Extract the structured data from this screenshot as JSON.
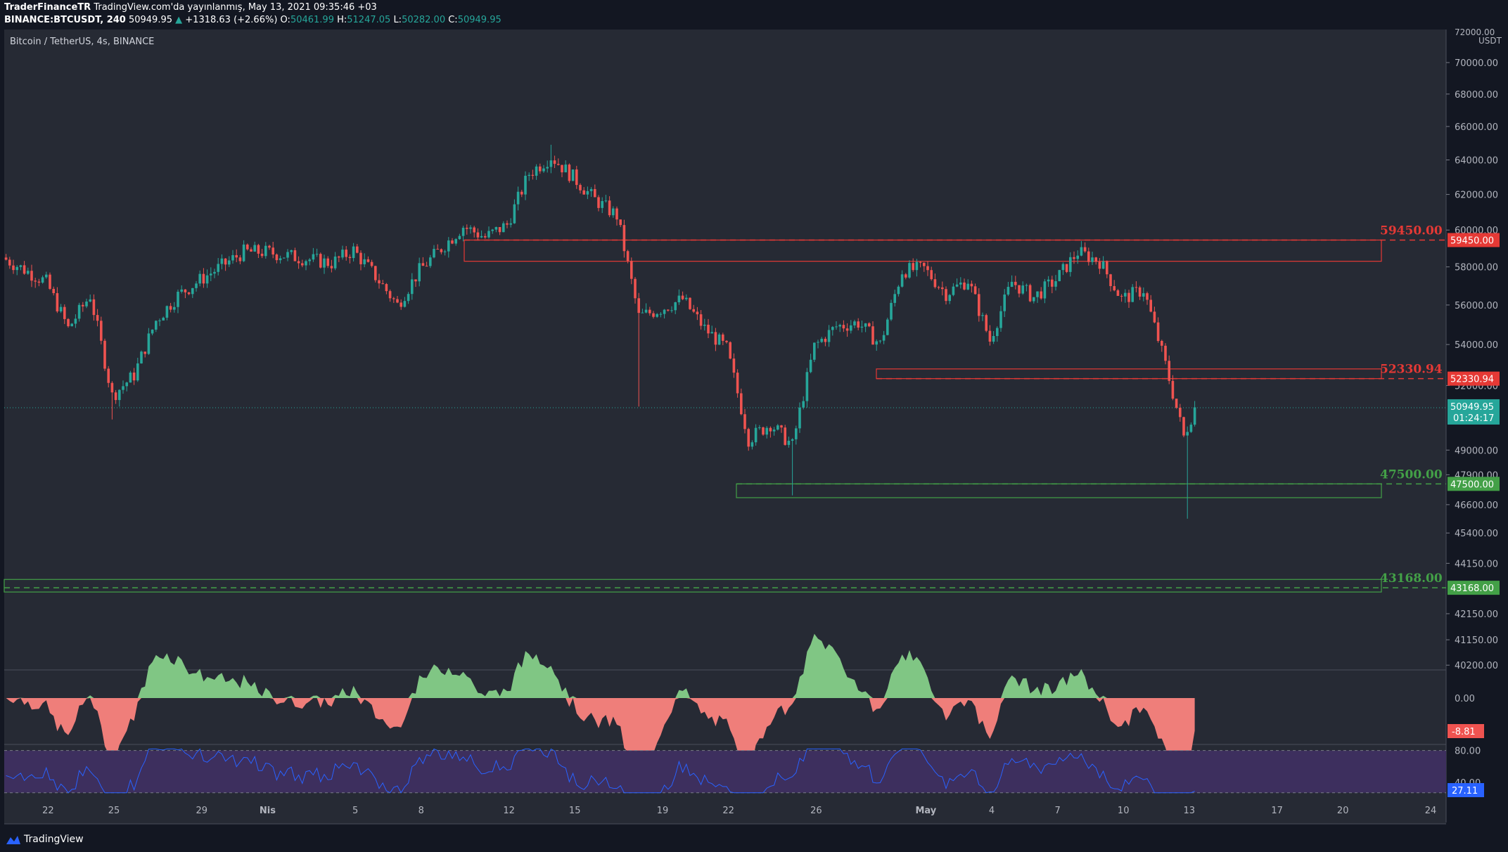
{
  "header": {
    "author": "TraderFinanceTR",
    "published": "TradingView.com'da yayınlanmış, May 13, 2021 09:35:46 +03",
    "ticker": "BINANCE:BTCUSDT, 240",
    "last": "50949.95",
    "change_icon": "triangle-up-icon",
    "change": "+1318.63 (+2.66%)",
    "o_label": "O:",
    "o": "50461.99",
    "h_label": "H:",
    "h": "51247.05",
    "l_label": "L:",
    "l": "50282.00",
    "c_label": "C:",
    "c": "50949.95"
  },
  "symbol_title": "Bitcoin / TetherUS, 4s, BINANCE",
  "colors": {
    "up": "#26a69a",
    "down": "#ef5350",
    "resistance": "#e53935",
    "support": "#43a047",
    "osc_pos": "#80c684",
    "osc_neg": "#ef7e7a",
    "rsi_line": "#2962ff",
    "rsi_band": "#3d2f5e"
  },
  "price_axis": {
    "unit_top": "72000.00",
    "unit": "USDT",
    "ticks": [
      "70000.00",
      "68000.00",
      "66000.00",
      "64000.00",
      "62000.00",
      "60000.00",
      "58000.00",
      "56000.00",
      "54000.00",
      "52000.00",
      "49000.00",
      "47900.00",
      "46600.00",
      "45400.00",
      "44150.00",
      "42150.00",
      "41150.00",
      "40200.00"
    ]
  },
  "levels": [
    {
      "value": "59450.00",
      "tag": "59450.00",
      "kind": "resistance"
    },
    {
      "value": "52330.94",
      "tag": "52330.94",
      "kind": "resistance"
    },
    {
      "value": "47500.00",
      "tag": "47500.00",
      "kind": "support"
    },
    {
      "value": "43168.00",
      "tag": "43168.00",
      "kind": "support"
    }
  ],
  "current_price": {
    "value": "50949.95",
    "countdown": "01:24:17"
  },
  "oscillator": {
    "ticks": [
      "0.00"
    ],
    "value": "-8.81"
  },
  "rsi": {
    "ticks": [
      "80.00",
      "40.00"
    ],
    "value": "27.11"
  },
  "time_axis": [
    "22",
    "25",
    "29",
    "Nis",
    "5",
    "8",
    "12",
    "15",
    "19",
    "22",
    "26",
    "May",
    "4",
    "7",
    "10",
    "13",
    "17",
    "20",
    "24"
  ],
  "footer": {
    "logo_icon": "tradingview-logo-icon",
    "brand": "TradingView"
  },
  "chart_data": {
    "type": "candlestick",
    "title": "Bitcoin / TetherUS, 4s, BINANCE",
    "unit": "USDT",
    "ylim": [
      40200,
      72000
    ],
    "x_start": "2021-03-20",
    "x_ticks": [
      "22",
      "25",
      "29",
      "Nis",
      "5",
      "8",
      "12",
      "15",
      "19",
      "22",
      "26",
      "May",
      "4",
      "7",
      "10",
      "13",
      "17",
      "20",
      "24"
    ],
    "close_path": [
      [
        "2021-03-20",
        58500
      ],
      [
        "2021-03-22",
        57200
      ],
      [
        "2021-03-23",
        54800
      ],
      [
        "2021-03-24",
        56500
      ],
      [
        "2021-03-25",
        51500
      ],
      [
        "2021-03-26",
        52500
      ],
      [
        "2021-03-27",
        55200
      ],
      [
        "2021-03-28",
        56500
      ],
      [
        "2021-03-29",
        57300
      ],
      [
        "2021-03-31",
        58800
      ],
      [
        "2021-04-01",
        58800
      ],
      [
        "2021-04-04",
        58200
      ],
      [
        "2021-04-05",
        58900
      ],
      [
        "2021-04-06",
        57500
      ],
      [
        "2021-04-07",
        56000
      ],
      [
        "2021-04-08",
        57800
      ],
      [
        "2021-04-10",
        60200
      ],
      [
        "2021-04-11",
        59600
      ],
      [
        "2021-04-12",
        60300
      ],
      [
        "2021-04-13",
        63200
      ],
      [
        "2021-04-14",
        64200
      ],
      [
        "2021-04-15",
        63000
      ],
      [
        "2021-04-16",
        61700
      ],
      [
        "2021-04-17",
        60800
      ],
      [
        "2021-04-18",
        55400
      ],
      [
        "2021-04-19",
        55800
      ],
      [
        "2021-04-20",
        56300
      ],
      [
        "2021-04-21",
        54800
      ],
      [
        "2021-04-22",
        53800
      ],
      [
        "2021-04-23",
        49500
      ],
      [
        "2021-04-24",
        50200
      ],
      [
        "2021-04-25",
        49200
      ],
      [
        "2021-04-26",
        53900
      ],
      [
        "2021-04-27",
        54900
      ],
      [
        "2021-04-28",
        55100
      ],
      [
        "2021-04-29",
        54000
      ],
      [
        "2021-04-30",
        57800
      ],
      [
        "2021-05-01",
        57900
      ],
      [
        "2021-05-02",
        56600
      ],
      [
        "2021-05-03",
        57300
      ],
      [
        "2021-05-04",
        54200
      ],
      [
        "2021-05-05",
        57200
      ],
      [
        "2021-05-06",
        56400
      ],
      [
        "2021-05-07",
        57300
      ],
      [
        "2021-05-08",
        58800
      ],
      [
        "2021-05-09",
        58300
      ],
      [
        "2021-05-10",
        56300
      ],
      [
        "2021-05-11",
        56800
      ],
      [
        "2021-05-12",
        53000
      ],
      [
        "2021-05-12 20:00",
        49600
      ],
      [
        "2021-05-13 08:00",
        50949.95
      ]
    ],
    "annotations": [
      {
        "label": "59450.00",
        "type": "resistance-zone",
        "price": 59450,
        "range": [
          58300,
          59450
        ]
      },
      {
        "label": "52330.94",
        "type": "resistance-zone",
        "price": 52330.94,
        "range": [
          52330.94,
          52800
        ]
      },
      {
        "label": "47500.00",
        "type": "support-zone",
        "price": 47500,
        "range": [
          46900,
          47500
        ]
      },
      {
        "label": "43168.00",
        "type": "support-zone",
        "price": 43168,
        "range": [
          43000,
          43500
        ]
      }
    ],
    "last": 50949.95
  }
}
